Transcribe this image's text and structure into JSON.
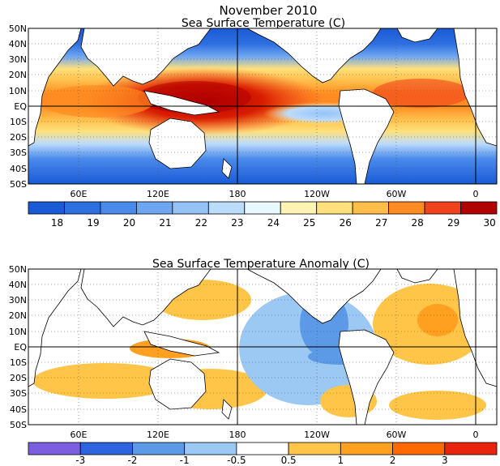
{
  "main_title": "November 2010",
  "panels": [
    {
      "id": "sst",
      "title": "Sea Surface Temperature (C)",
      "lat_labels": [
        "50N",
        "40N",
        "30N",
        "20N",
        "10N",
        "EQ",
        "10S",
        "20S",
        "30S",
        "40S",
        "50S"
      ],
      "lon_labels": [
        "60E",
        "120E",
        "180",
        "120W",
        "60W",
        "0"
      ],
      "colorbar": {
        "colors": [
          "#1a5ad6",
          "#2e6fe0",
          "#4a8aeb",
          "#6ea6f2",
          "#94c2f7",
          "#bcdcfb",
          "#e8f8ff",
          "#fff3b4",
          "#ffe07a",
          "#ffbd4a",
          "#ff8c22",
          "#f0421c",
          "#b00000"
        ],
        "labels": [
          "18",
          "19",
          "20",
          "21",
          "22",
          "23",
          "24",
          "25",
          "26",
          "27",
          "28",
          "29",
          "30"
        ]
      }
    },
    {
      "id": "anom",
      "title": "Sea Surface Temperature Anomaly (C)",
      "lat_labels": [
        "50N",
        "40N",
        "30N",
        "20N",
        "10N",
        "EQ",
        "10S",
        "20S",
        "30S",
        "40S",
        "50S"
      ],
      "lon_labels": [
        "60E",
        "120E",
        "180",
        "120W",
        "60W",
        "0"
      ],
      "colorbar": {
        "colors": [
          "#7b5fe0",
          "#2e64e0",
          "#5c9ae8",
          "#9cc8f4",
          "#ffffff",
          "#ffc548",
          "#ffa020",
          "#ff6a00",
          "#e8240c"
        ],
        "labels": [
          "-3",
          "-2",
          "-1",
          "-0.5",
          "0.5",
          "1",
          "2",
          "3"
        ]
      }
    }
  ],
  "colors": {
    "land": "#ffffff",
    "coast": "#000000",
    "cold_ocean": "#2a62d8",
    "warm_pool": "#d81c00",
    "anom_warm": "#ffc04a",
    "anom_cool": "#a8cff5",
    "anom_cold": "#3e7de6"
  }
}
